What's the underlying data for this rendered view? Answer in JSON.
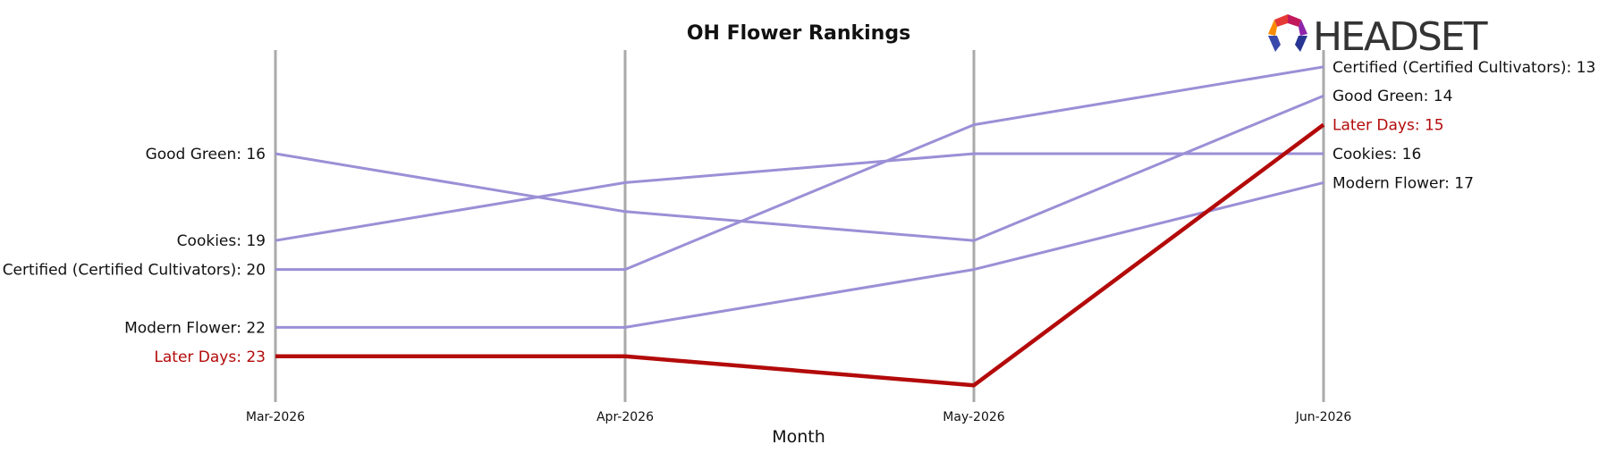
{
  "chart_data": {
    "type": "line",
    "title": "OH Flower Rankings",
    "xlabel": "Month",
    "ylabel": "",
    "x": [
      "Mar-2026",
      "Apr-2026",
      "May-2026",
      "Jun-2026"
    ],
    "y_inverted": true,
    "ylim": [
      12,
      24
    ],
    "grid": "vertical lines at each month",
    "series": [
      {
        "name": "Certified (Certified Cultivators)",
        "values": [
          20,
          20,
          15,
          13
        ],
        "color": "#9b8fd6",
        "highlight": false
      },
      {
        "name": "Good Green",
        "values": [
          16,
          18,
          19,
          14
        ],
        "color": "#9b8fd6",
        "highlight": false
      },
      {
        "name": "Cookies",
        "values": [
          19,
          17,
          16,
          16
        ],
        "color": "#9b8fd6",
        "highlight": false
      },
      {
        "name": "Modern Flower",
        "values": [
          22,
          22,
          20,
          17
        ],
        "color": "#9b8fd6",
        "highlight": false
      },
      {
        "name": "Later Days",
        "values": [
          23,
          23,
          24,
          15
        ],
        "color": "#b30a0a",
        "highlight": true
      }
    ],
    "left_labels": [
      {
        "text": "Good Green: 16",
        "value": 16,
        "color": "#111111"
      },
      {
        "text": "Cookies: 19",
        "value": 19,
        "color": "#111111"
      },
      {
        "text": "Certified (Certified Cultivators): 20",
        "value": 20,
        "color": "#111111"
      },
      {
        "text": "Modern Flower: 22",
        "value": 22,
        "color": "#111111"
      },
      {
        "text": "Later Days: 23",
        "value": 23,
        "color": "#b30a0a"
      }
    ],
    "right_labels": [
      {
        "text": "Certified (Certified Cultivators): 13",
        "value": 13,
        "color": "#111111"
      },
      {
        "text": "Good Green: 14",
        "value": 14,
        "color": "#111111"
      },
      {
        "text": "Later Days: 15",
        "value": 15,
        "color": "#b30a0a"
      },
      {
        "text": "Cookies: 16",
        "value": 16,
        "color": "#111111"
      },
      {
        "text": "Modern Flower: 17",
        "value": 17,
        "color": "#111111"
      }
    ]
  },
  "logo": {
    "text": "HEADSET",
    "icon": "headset-logo-icon"
  },
  "colors": {
    "grid": "#aaaaaa",
    "muted_series": "#9b8fd6",
    "highlight": "#b30a0a",
    "logo_text": "#333333"
  }
}
